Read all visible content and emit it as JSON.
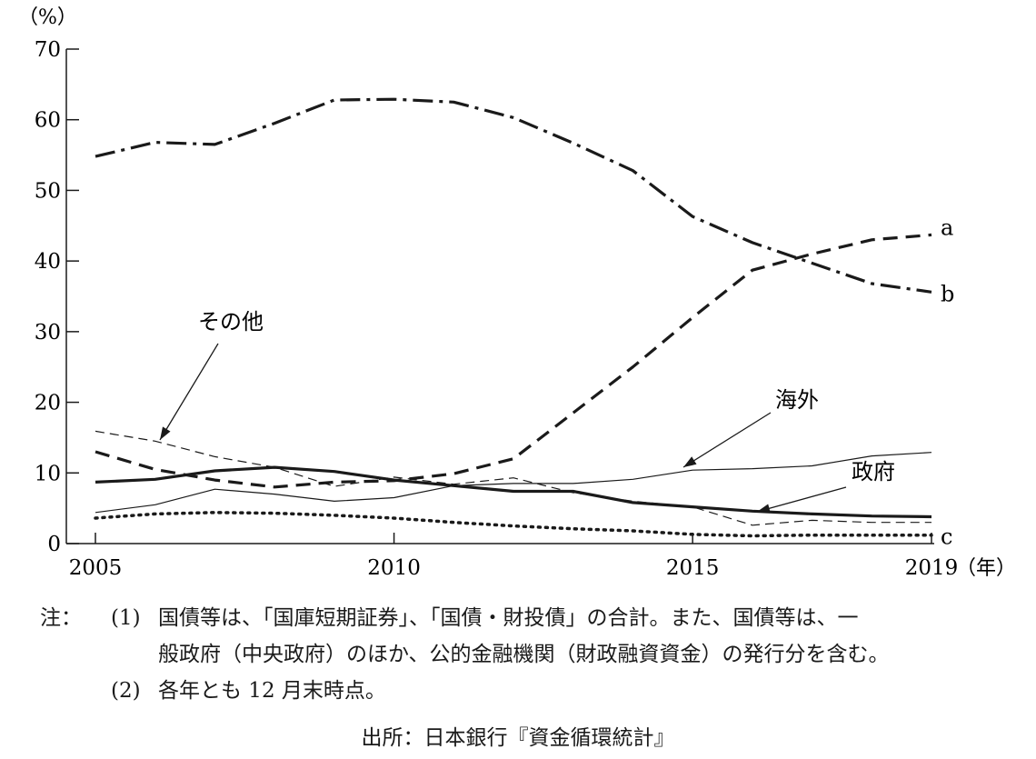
{
  "chart_data": {
    "type": "line",
    "y_unit_label": "（%）",
    "x_unit_label": "（年）",
    "ylim": [
      0,
      70
    ],
    "xlim": [
      2005,
      2019
    ],
    "y_ticks": [
      "0",
      "10",
      "20",
      "30",
      "40",
      "50",
      "60",
      "70"
    ],
    "x_ticks": [
      "2005",
      "2010",
      "2015",
      "2019"
    ],
    "grid": false,
    "series": [
      {
        "name": "a",
        "style": "dashed-thick",
        "x": [
          2005,
          2006,
          2007,
          2008,
          2009,
          2010,
          2011,
          2012,
          2013,
          2014,
          2015,
          2016,
          2017,
          2018,
          2019
        ],
        "y": [
          13.0,
          10.5,
          9.0,
          8.0,
          8.7,
          8.9,
          9.9,
          12.0,
          18.5,
          25.0,
          32.0,
          38.7,
          41.0,
          43.0,
          43.7
        ]
      },
      {
        "name": "b",
        "style": "dash-dot-thick",
        "x": [
          2005,
          2006,
          2007,
          2008,
          2009,
          2010,
          2011,
          2012,
          2013,
          2014,
          2015,
          2016,
          2017,
          2018,
          2019
        ],
        "y": [
          54.8,
          56.8,
          56.5,
          59.5,
          62.8,
          62.9,
          62.5,
          60.3,
          56.7,
          52.8,
          46.3,
          42.6,
          39.7,
          36.8,
          35.6
        ]
      },
      {
        "name": "c",
        "style": "dotted-thick",
        "x": [
          2005,
          2006,
          2007,
          2008,
          2009,
          2010,
          2011,
          2012,
          2013,
          2014,
          2015,
          2016,
          2017,
          2018,
          2019
        ],
        "y": [
          3.6,
          4.2,
          4.4,
          4.3,
          4.0,
          3.6,
          3.0,
          2.5,
          2.1,
          1.8,
          1.3,
          1.1,
          1.2,
          1.2,
          1.2
        ]
      },
      {
        "name": "政府",
        "style": "solid-thick",
        "x": [
          2005,
          2006,
          2007,
          2008,
          2009,
          2010,
          2011,
          2012,
          2013,
          2014,
          2015,
          2016,
          2017,
          2018,
          2019
        ],
        "y": [
          8.7,
          9.1,
          10.3,
          10.8,
          10.2,
          9.0,
          8.2,
          7.4,
          7.4,
          5.8,
          5.2,
          4.6,
          4.2,
          3.9,
          3.8
        ]
      },
      {
        "name": "海外",
        "style": "solid-thin",
        "x": [
          2005,
          2006,
          2007,
          2008,
          2009,
          2010,
          2011,
          2012,
          2013,
          2014,
          2015,
          2016,
          2017,
          2018,
          2019
        ],
        "y": [
          4.4,
          5.5,
          7.7,
          7.0,
          6.0,
          6.5,
          8.2,
          8.5,
          8.5,
          9.1,
          10.4,
          10.6,
          11.0,
          12.4,
          12.9
        ]
      },
      {
        "name": "その他",
        "style": "dashed-thin",
        "x": [
          2005,
          2006,
          2007,
          2008,
          2009,
          2010,
          2011,
          2012,
          2013,
          2014,
          2015,
          2016,
          2017,
          2018,
          2019
        ],
        "y": [
          15.9,
          14.5,
          12.3,
          10.8,
          8.1,
          9.4,
          8.4,
          9.3,
          7.2,
          6.0,
          5.2,
          2.6,
          3.3,
          3.0,
          3.0
        ]
      }
    ]
  },
  "notes": {
    "prefix": "注：",
    "items": [
      {
        "num": "(1)",
        "line1": "国債等は、「国庫短期証券」、「国債・財投債」の合計。また、国債等は、一",
        "line2": "般政府（中央政府）のほか、公的金融機関（財政融資資金）の発行分を含む。"
      },
      {
        "num": "(2)",
        "line1": "各年とも 12 月末時点。"
      }
    ]
  },
  "source": "出所：日本銀行『資金循環統計』"
}
